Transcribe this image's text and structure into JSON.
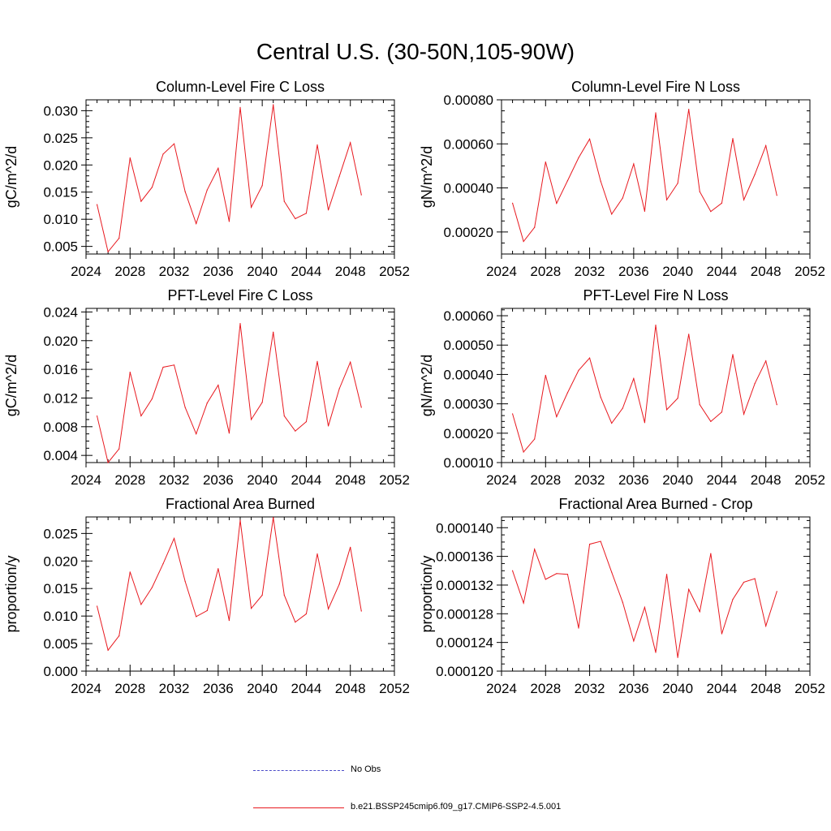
{
  "title": "Central U.S. (30-50N,105-90W)",
  "line_color": "#e8191f",
  "obs_color": "#4b4bc8",
  "legend": {
    "obs_label": "No Obs",
    "model_label": "b.e21.BSSP245cmip6.f09_g17.CMIP6-SSP2-4.5.001"
  },
  "chart_data": [
    {
      "type": "line",
      "title": "Column-Level Fire C Loss",
      "ylabel": "gC/m^2/d",
      "xlim": [
        2024,
        2052
      ],
      "xticks": [
        2024,
        2028,
        2032,
        2036,
        2040,
        2044,
        2048,
        2052
      ],
      "ylim": [
        0.0036,
        0.032
      ],
      "yticks": [
        0.005,
        0.01,
        0.015,
        0.02,
        0.025,
        0.03
      ],
      "ytick_labels": [
        "0.005",
        "0.010",
        "0.015",
        "0.020",
        "0.025",
        "0.030"
      ],
      "yminor": 0.001,
      "x": [
        2025,
        2026,
        2027,
        2028,
        2029,
        2030,
        2031,
        2032,
        2033,
        2034,
        2035,
        2036,
        2037,
        2038,
        2039,
        2040,
        2041,
        2042,
        2043,
        2044,
        2045,
        2046,
        2047,
        2048,
        2049
      ],
      "values": [
        0.0127,
        0.004,
        0.0065,
        0.0213,
        0.0133,
        0.0159,
        0.022,
        0.0239,
        0.0151,
        0.0092,
        0.0154,
        0.0194,
        0.0096,
        0.0306,
        0.0122,
        0.0162,
        0.0311,
        0.0133,
        0.0101,
        0.0111,
        0.0237,
        0.0117,
        0.0179,
        0.0241,
        0.0145
      ]
    },
    {
      "type": "line",
      "title": "Column-Level Fire N Loss",
      "ylabel": "gN/m^2/d",
      "xlim": [
        2024,
        2052
      ],
      "xticks": [
        2024,
        2028,
        2032,
        2036,
        2040,
        2044,
        2048,
        2052
      ],
      "ylim": [
        0.0001,
        0.0008
      ],
      "yticks": [
        0.0002,
        0.0004,
        0.0006,
        0.0008
      ],
      "ytick_labels": [
        "0.00020",
        "0.00040",
        "0.00060",
        "0.00080"
      ],
      "yminor": 5e-05,
      "x": [
        2025,
        2026,
        2027,
        2028,
        2029,
        2030,
        2031,
        2032,
        2033,
        2034,
        2035,
        2036,
        2037,
        2038,
        2039,
        2040,
        2041,
        2042,
        2043,
        2044,
        2045,
        2046,
        2047,
        2048,
        2049
      ],
      "values": [
        0.000331,
        0.000157,
        0.000221,
        0.000518,
        0.00033,
        0.000433,
        0.000537,
        0.000622,
        0.000431,
        0.000281,
        0.000354,
        0.000509,
        0.000294,
        0.000741,
        0.000346,
        0.000421,
        0.000757,
        0.000383,
        0.000293,
        0.000331,
        0.000624,
        0.000346,
        0.000461,
        0.000592,
        0.000366
      ]
    },
    {
      "type": "line",
      "title": "PFT-Level Fire C Loss",
      "ylabel": "gC/m^2/d",
      "xlim": [
        2024,
        2052
      ],
      "xticks": [
        2024,
        2028,
        2032,
        2036,
        2040,
        2044,
        2048,
        2052
      ],
      "ylim": [
        0.003,
        0.0245
      ],
      "yticks": [
        0.004,
        0.008,
        0.012,
        0.016,
        0.02,
        0.024
      ],
      "ytick_labels": [
        "0.004",
        "0.008",
        "0.012",
        "0.016",
        "0.020",
        "0.024"
      ],
      "yminor": 0.001,
      "x": [
        2025,
        2026,
        2027,
        2028,
        2029,
        2030,
        2031,
        2032,
        2033,
        2034,
        2035,
        2036,
        2037,
        2038,
        2039,
        2040,
        2041,
        2042,
        2043,
        2044,
        2045,
        2046,
        2047,
        2048,
        2049
      ],
      "values": [
        0.0095,
        0.003,
        0.0049,
        0.0156,
        0.0095,
        0.0119,
        0.0163,
        0.0166,
        0.0107,
        0.007,
        0.0113,
        0.0138,
        0.0071,
        0.0224,
        0.009,
        0.0114,
        0.0212,
        0.0095,
        0.0074,
        0.0087,
        0.0171,
        0.0081,
        0.0133,
        0.017,
        0.0107
      ]
    },
    {
      "type": "line",
      "title": "PFT-Level Fire N Loss",
      "ylabel": "gN/m^2/d",
      "xlim": [
        2024,
        2052
      ],
      "xticks": [
        2024,
        2028,
        2032,
        2036,
        2040,
        2044,
        2048,
        2052
      ],
      "ylim": [
        0.0001,
        0.000625
      ],
      "yticks": [
        0.0001,
        0.0002,
        0.0003,
        0.0004,
        0.0005,
        0.0006
      ],
      "ytick_labels": [
        "0.00010",
        "0.00020",
        "0.00030",
        "0.00040",
        "0.00050",
        "0.00060"
      ],
      "yminor": 2e-05,
      "x": [
        2025,
        2026,
        2027,
        2028,
        2029,
        2030,
        2031,
        2032,
        2033,
        2034,
        2035,
        2036,
        2037,
        2038,
        2039,
        2040,
        2041,
        2042,
        2043,
        2044,
        2045,
        2046,
        2047,
        2048,
        2049
      ],
      "values": [
        0.000266,
        0.000136,
        0.00018,
        0.000397,
        0.000256,
        0.000338,
        0.000414,
        0.000456,
        0.000323,
        0.000234,
        0.000285,
        0.000386,
        0.000236,
        0.000568,
        0.00028,
        0.000319,
        0.000537,
        0.000297,
        0.00024,
        0.000272,
        0.000468,
        0.000265,
        0.000369,
        0.000446,
        0.000297
      ]
    },
    {
      "type": "line",
      "title": "Fractional Area Burned",
      "ylabel": "proportion/y",
      "xlim": [
        2024,
        2052
      ],
      "xticks": [
        2024,
        2028,
        2032,
        2036,
        2040,
        2044,
        2048,
        2052
      ],
      "ylim": [
        0,
        0.028
      ],
      "yticks": [
        0,
        0.005,
        0.01,
        0.015,
        0.02,
        0.025
      ],
      "ytick_labels": [
        "0.000",
        "0.005",
        "0.010",
        "0.015",
        "0.020",
        "0.025"
      ],
      "yminor": 0.001,
      "x": [
        2025,
        2026,
        2027,
        2028,
        2029,
        2030,
        2031,
        2032,
        2033,
        2034,
        2035,
        2036,
        2037,
        2038,
        2039,
        2040,
        2041,
        2042,
        2043,
        2044,
        2045,
        2046,
        2047,
        2048,
        2049
      ],
      "values": [
        0.0118,
        0.0038,
        0.0064,
        0.018,
        0.0121,
        0.0152,
        0.0195,
        0.0241,
        0.0163,
        0.0099,
        0.011,
        0.0186,
        0.0092,
        0.0274,
        0.0114,
        0.0138,
        0.0279,
        0.0138,
        0.0089,
        0.0104,
        0.0213,
        0.0113,
        0.0158,
        0.0225,
        0.0109
      ]
    },
    {
      "type": "line",
      "title": "Fractional Area Burned - Crop",
      "ylabel": "proportion/y",
      "xlim": [
        2024,
        2052
      ],
      "xticks": [
        2024,
        2028,
        2032,
        2036,
        2040,
        2044,
        2048,
        2052
      ],
      "ylim": [
        0.00012,
        0.0001415
      ],
      "yticks": [
        0.00012,
        0.000124,
        0.000128,
        0.000132,
        0.000136,
        0.00014
      ],
      "ytick_labels": [
        "0.000120",
        "0.000124",
        "0.000128",
        "0.000132",
        "0.000136",
        "0.000140"
      ],
      "yminor": 1e-06,
      "x": [
        2025,
        2026,
        2027,
        2028,
        2029,
        2030,
        2031,
        2032,
        2033,
        2034,
        2035,
        2036,
        2037,
        2038,
        2039,
        2040,
        2041,
        2042,
        2043,
        2044,
        2045,
        2046,
        2047,
        2048,
        2049
      ],
      "values": [
        0.000134,
        0.0001295,
        0.000137,
        0.0001328,
        0.0001336,
        0.0001335,
        0.000126,
        0.0001377,
        0.0001381,
        0.0001338,
        0.0001296,
        0.0001242,
        0.0001289,
        0.0001226,
        0.0001335,
        0.0001219,
        0.0001314,
        0.0001283,
        0.0001364,
        0.0001252,
        0.00013,
        0.0001324,
        0.0001329,
        0.0001263,
        0.0001311
      ]
    }
  ]
}
